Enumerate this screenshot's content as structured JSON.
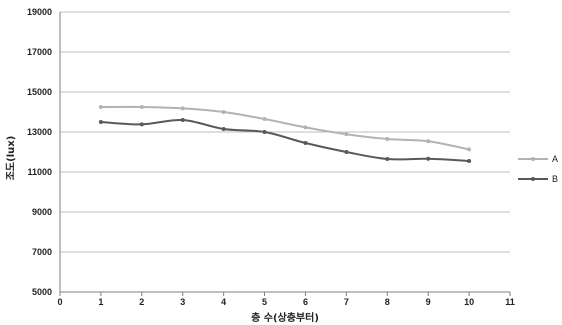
{
  "chart_data": {
    "type": "line",
    "title": "",
    "xlabel": "층 수(상층부터)",
    "ylabel": "조도(lux)",
    "xlim": [
      0,
      11
    ],
    "ylim": [
      5000,
      19000
    ],
    "x_ticks": [
      0,
      1,
      2,
      3,
      4,
      5,
      6,
      7,
      8,
      9,
      10,
      11
    ],
    "y_ticks": [
      5000,
      7000,
      9000,
      11000,
      13000,
      15000,
      17000,
      19000
    ],
    "grid": "horizontal",
    "legend_position": "right",
    "x": [
      1,
      2,
      3,
      4,
      5,
      6,
      7,
      8,
      9,
      10
    ],
    "series": [
      {
        "name": "A",
        "color": "#b3b3b3",
        "values": [
          14250,
          14250,
          14180,
          14000,
          13650,
          13230,
          12890,
          12650,
          12540,
          12130
        ]
      },
      {
        "name": "B",
        "color": "#595959",
        "values": [
          13500,
          13380,
          13600,
          13150,
          13000,
          12450,
          12000,
          11650,
          11660,
          11550
        ]
      }
    ]
  }
}
